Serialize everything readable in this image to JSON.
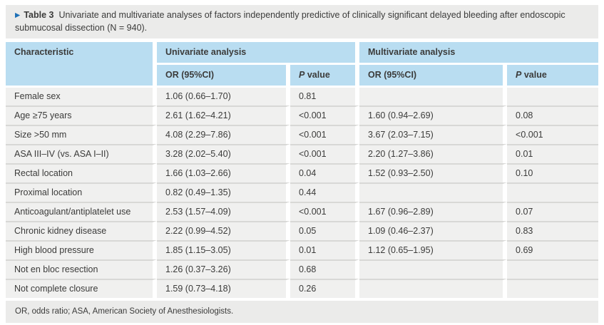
{
  "title": {
    "marker": "▶",
    "label": "Table 3",
    "text": "Univariate and multivariate analyses of factors independently predictive of clinically significant delayed bleeding after endoscopic submucosal dissection (N = 940)."
  },
  "table": {
    "header": {
      "characteristic": "Characteristic",
      "group_univariate": "Univariate analysis",
      "group_multivariate": "Multivariate analysis",
      "or_label": "OR (95%CI)",
      "p_italic": "P",
      "p_rest": " value"
    },
    "rows": [
      {
        "characteristic": "Female sex",
        "uni_or": "1.06 (0.66–1.70)",
        "uni_p": "0.81",
        "multi_or": "",
        "multi_p": ""
      },
      {
        "characteristic": "Age ≥75 years",
        "uni_or": "2.61 (1.62–4.21)",
        "uni_p": "<0.001",
        "multi_or": "1.60 (0.94–2.69)",
        "multi_p": "0.08"
      },
      {
        "characteristic": "Size >50 mm",
        "uni_or": "4.08 (2.29–7.86)",
        "uni_p": "<0.001",
        "multi_or": "3.67 (2.03–7.15)",
        "multi_p": "<0.001"
      },
      {
        "characteristic": "ASA III–IV (vs. ASA I–II)",
        "uni_or": "3.28 (2.02–5.40)",
        "uni_p": "<0.001",
        "multi_or": "2.20 (1.27–3.86)",
        "multi_p": "0.01"
      },
      {
        "characteristic": "Rectal location",
        "uni_or": "1.66 (1.03–2.66)",
        "uni_p": "0.04",
        "multi_or": "1.52 (0.93–2.50)",
        "multi_p": "0.10"
      },
      {
        "characteristic": "Proximal location",
        "uni_or": "0.82 (0.49–1.35)",
        "uni_p": "0.44",
        "multi_or": "",
        "multi_p": ""
      },
      {
        "characteristic": "Anticoagulant/antiplatelet use",
        "uni_or": "2.53 (1.57–4.09)",
        "uni_p": "<0.001",
        "multi_or": "1.67 (0.96–2.89)",
        "multi_p": "0.07"
      },
      {
        "characteristic": "Chronic kidney disease",
        "uni_or": "2.22 (0.99–4.52)",
        "uni_p": "0.05",
        "multi_or": "1.09 (0.46–2.37)",
        "multi_p": "0.83"
      },
      {
        "characteristic": "High blood pressure",
        "uni_or": "1.85 (1.15–3.05)",
        "uni_p": "0.01",
        "multi_or": "1.12 (0.65–1.95)",
        "multi_p": "0.69"
      },
      {
        "characteristic": "Not en bloc resection",
        "uni_or": "1.26 (0.37–3.26)",
        "uni_p": "0.68",
        "multi_or": "",
        "multi_p": ""
      },
      {
        "characteristic": "Not complete closure",
        "uni_or": "1.59 (0.73–4.18)",
        "uni_p": "0.26",
        "multi_or": "",
        "multi_p": ""
      }
    ]
  },
  "footnote": "OR, odds ratio; ASA, American Society of Anesthesiologists.",
  "colors": {
    "header_blue": "#b9ddf1",
    "row_background": "#f0f0ef",
    "band_gray": "#ebebea",
    "row_separator": "#d8d8d6",
    "marker_blue": "#1d70b7",
    "text": "#3b3b3a"
  }
}
